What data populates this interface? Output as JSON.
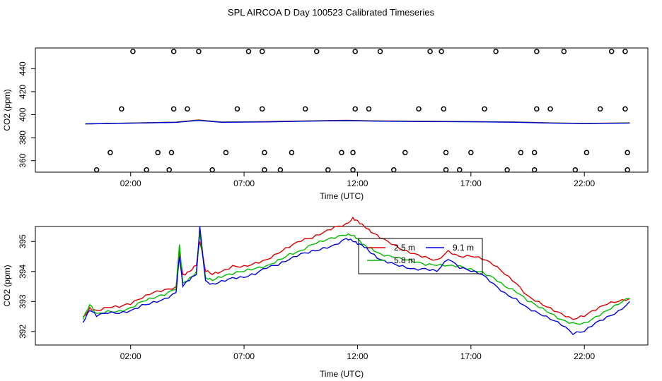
{
  "title": "SPL AIRCOA D  Day 100523  Calibrated Timeseries",
  "colors": {
    "red": "#dd0000",
    "green": "#00bb00",
    "blue": "#0000dd",
    "purple": "#aa00aa",
    "cyan": "#00aaaa",
    "black": "#000000"
  },
  "chart_data": [
    {
      "type": "scatter",
      "title": "",
      "xlabel": "Time (UTC)",
      "ylabel": "CO2 (ppm)",
      "x_ticks": [
        "02:00",
        "07:00",
        "12:00",
        "17:00",
        "22:00"
      ],
      "x_tick_hours": [
        2,
        7,
        12,
        17,
        22
      ],
      "y_ticks": [
        "360",
        "380",
        "400",
        "420",
        "440"
      ],
      "y_tick_values": [
        360,
        380,
        400,
        420,
        440
      ],
      "xlim": [
        -2.2,
        24.8
      ],
      "ylim": [
        350,
        458
      ],
      "grid": false,
      "marker": "open circle",
      "points": [
        [
          0.5,
          352
        ],
        [
          2.1,
          455
        ],
        [
          3.9,
          455
        ],
        [
          5.0,
          455
        ],
        [
          7.2,
          455
        ],
        [
          7.8,
          455
        ],
        [
          10.2,
          455
        ],
        [
          11.9,
          455
        ],
        [
          13.0,
          455
        ],
        [
          15.2,
          455
        ],
        [
          15.7,
          455
        ],
        [
          18.1,
          455
        ],
        [
          19.9,
          455
        ],
        [
          21.1,
          455
        ],
        [
          23.2,
          455
        ],
        [
          23.8,
          455
        ],
        [
          1.1,
          367
        ],
        [
          1.6,
          405
        ],
        [
          2.7,
          352
        ],
        [
          3.2,
          367
        ],
        [
          3.7,
          352
        ],
        [
          3.8,
          367
        ],
        [
          3.9,
          405
        ],
        [
          4.5,
          405
        ],
        [
          5.6,
          352
        ],
        [
          6.2,
          367
        ],
        [
          6.7,
          405
        ],
        [
          7.8,
          405
        ],
        [
          7.9,
          367
        ],
        [
          7.9,
          352
        ],
        [
          8.6,
          352
        ],
        [
          9.1,
          367
        ],
        [
          9.7,
          405
        ],
        [
          10.7,
          352
        ],
        [
          11.3,
          367
        ],
        [
          11.8,
          352
        ],
        [
          11.8,
          367
        ],
        [
          11.9,
          405
        ],
        [
          12.5,
          405
        ],
        [
          13.6,
          352
        ],
        [
          14.1,
          367
        ],
        [
          14.7,
          405
        ],
        [
          15.8,
          405
        ],
        [
          15.9,
          367
        ],
        [
          15.9,
          352
        ],
        [
          16.5,
          352
        ],
        [
          17.0,
          367
        ],
        [
          17.6,
          405
        ],
        [
          18.6,
          352
        ],
        [
          19.2,
          367
        ],
        [
          19.8,
          352
        ],
        [
          19.8,
          367
        ],
        [
          19.9,
          405
        ],
        [
          20.5,
          405
        ],
        [
          21.6,
          352
        ],
        [
          22.1,
          367
        ],
        [
          22.7,
          405
        ],
        [
          23.8,
          405
        ],
        [
          23.9,
          367
        ],
        [
          23.9,
          352
        ]
      ],
      "series": [
        {
          "name": "2.5 m",
          "color": "#dd0000",
          "x": [
            0,
            2,
            4,
            5,
            6,
            8,
            10,
            11.5,
            13,
            15,
            17,
            19,
            20.5,
            22,
            24
          ],
          "values": [
            392.0,
            392.8,
            393.5,
            395.5,
            393.6,
            394.0,
            394.7,
            395.1,
            394.6,
            394.3,
            394.0,
            393.6,
            392.9,
            392.4,
            392.9
          ]
        },
        {
          "name": "5.8 m",
          "color": "#00bb00",
          "x": [
            0,
            2,
            4,
            5,
            6,
            8,
            10,
            11.5,
            13,
            15,
            17,
            19,
            20.5,
            22,
            24
          ],
          "values": [
            392.0,
            392.7,
            393.4,
            395.2,
            393.5,
            393.8,
            394.5,
            394.9,
            394.4,
            394.1,
            393.9,
            393.5,
            392.8,
            392.3,
            392.8
          ]
        },
        {
          "name": "9.1 m",
          "color": "#0000dd",
          "x": [
            0,
            2,
            4,
            5,
            6,
            8,
            10,
            11.5,
            13,
            15,
            17,
            19,
            20.5,
            22,
            24
          ],
          "values": [
            392.0,
            392.6,
            393.3,
            395.0,
            393.4,
            393.7,
            394.4,
            394.8,
            394.3,
            394.0,
            393.8,
            393.4,
            392.7,
            392.2,
            392.7
          ]
        }
      ]
    },
    {
      "type": "line",
      "title": "",
      "xlabel": "Time (UTC)",
      "ylabel": "CO2 (ppm)",
      "x_ticks": [
        "02:00",
        "07:00",
        "12:00",
        "17:00",
        "22:00"
      ],
      "x_tick_hours": [
        2,
        7,
        12,
        17,
        22
      ],
      "y_ticks": [
        "392",
        "393",
        "394",
        "395"
      ],
      "y_tick_values": [
        392,
        393,
        394,
        395
      ],
      "xlim": [
        -2.2,
        24.8
      ],
      "ylim": [
        391.55,
        395.5
      ],
      "grid": false,
      "legend": {
        "placement": "top-center-right",
        "entries": [
          "2.5 m",
          "5.8 m",
          "9.1 m"
        ]
      },
      "series": [
        {
          "name": "2.5 m",
          "color": "#dd0000",
          "x": [
            -0.1,
            0.2,
            0.5,
            1.0,
            1.5,
            2.0,
            2.5,
            3.0,
            3.5,
            4.0,
            4.15,
            4.3,
            4.6,
            4.9,
            5.05,
            5.3,
            5.6,
            6.0,
            6.5,
            7.0,
            7.5,
            8.0,
            8.5,
            9.0,
            9.5,
            10.0,
            10.5,
            11.0,
            11.5,
            11.8,
            12.0,
            12.3,
            12.6,
            13.0,
            13.5,
            14.0,
            14.5,
            15.0,
            15.5,
            16.0,
            16.5,
            17.0,
            17.5,
            18.0,
            18.5,
            19.0,
            19.5,
            20.0,
            20.5,
            21.0,
            21.5,
            22.0,
            22.5,
            23.0,
            23.5,
            24.0
          ],
          "values": [
            392.5,
            392.8,
            392.7,
            392.8,
            392.8,
            392.9,
            393.1,
            393.3,
            393.4,
            393.5,
            394.7,
            393.9,
            394.0,
            394.2,
            395.0,
            394.0,
            393.9,
            394.0,
            394.2,
            394.2,
            394.3,
            394.4,
            394.6,
            394.8,
            395.0,
            395.1,
            395.3,
            395.5,
            395.6,
            395.8,
            395.7,
            395.5,
            395.3,
            395.1,
            394.9,
            394.7,
            394.6,
            394.5,
            394.4,
            394.7,
            394.5,
            394.5,
            394.4,
            394.2,
            393.9,
            393.6,
            393.2,
            393.0,
            392.8,
            392.6,
            392.4,
            392.5,
            392.7,
            392.9,
            393.0,
            393.1
          ]
        },
        {
          "name": "5.8 m",
          "color": "#00bb00",
          "x": [
            -0.1,
            0.2,
            0.5,
            1.0,
            1.5,
            2.0,
            2.5,
            3.0,
            3.5,
            4.0,
            4.15,
            4.3,
            4.6,
            4.9,
            5.05,
            5.3,
            5.6,
            6.0,
            6.5,
            7.0,
            7.5,
            8.0,
            8.5,
            9.0,
            9.5,
            10.0,
            10.5,
            11.0,
            11.5,
            11.8,
            12.0,
            12.3,
            12.6,
            13.0,
            13.5,
            14.0,
            14.5,
            15.0,
            15.5,
            16.0,
            16.5,
            17.0,
            17.5,
            18.0,
            18.5,
            19.0,
            19.5,
            20.0,
            20.5,
            21.0,
            21.5,
            22.0,
            22.5,
            23.0,
            23.5,
            24.0
          ],
          "values": [
            392.4,
            392.9,
            392.6,
            392.7,
            392.7,
            392.8,
            393.0,
            393.1,
            393.2,
            393.4,
            394.9,
            393.6,
            393.8,
            394.0,
            395.3,
            393.8,
            393.7,
            393.8,
            393.9,
            394.0,
            394.1,
            394.2,
            394.4,
            394.6,
            394.7,
            394.9,
            395.0,
            395.1,
            395.2,
            395.2,
            395.1,
            394.9,
            394.8,
            394.6,
            394.5,
            394.4,
            394.3,
            394.2,
            394.2,
            394.2,
            394.2,
            394.1,
            394.0,
            393.8,
            393.5,
            393.3,
            393.0,
            392.8,
            392.6,
            392.4,
            392.3,
            392.3,
            392.5,
            392.7,
            392.9,
            393.1
          ]
        },
        {
          "name": "9.1 m",
          "color": "#0000dd",
          "x": [
            -0.1,
            0.2,
            0.5,
            1.0,
            1.5,
            2.0,
            2.5,
            3.0,
            3.5,
            4.0,
            4.15,
            4.3,
            4.6,
            4.9,
            5.05,
            5.3,
            5.6,
            6.0,
            6.5,
            7.0,
            7.5,
            8.0,
            8.5,
            9.0,
            9.5,
            10.0,
            10.5,
            11.0,
            11.5,
            11.8,
            12.0,
            12.3,
            12.6,
            13.0,
            13.5,
            14.0,
            14.5,
            15.0,
            15.5,
            16.0,
            16.5,
            17.0,
            17.5,
            18.0,
            18.5,
            19.0,
            19.5,
            20.0,
            20.5,
            21.0,
            21.5,
            22.0,
            22.5,
            23.0,
            23.5,
            24.0
          ],
          "values": [
            392.3,
            392.7,
            392.5,
            392.6,
            392.6,
            392.7,
            392.9,
            393.0,
            393.1,
            393.3,
            394.5,
            393.5,
            393.7,
            393.9,
            395.5,
            393.7,
            393.6,
            393.7,
            393.8,
            393.8,
            393.9,
            394.1,
            394.2,
            394.4,
            394.6,
            394.7,
            394.8,
            394.9,
            395.1,
            395.0,
            394.9,
            394.8,
            394.6,
            394.4,
            394.3,
            394.2,
            394.1,
            394.1,
            394.0,
            394.4,
            394.1,
            394.0,
            393.9,
            393.6,
            393.3,
            393.1,
            392.8,
            392.6,
            392.4,
            392.2,
            391.9,
            392.0,
            392.3,
            392.5,
            392.7,
            393.0
          ]
        }
      ]
    }
  ]
}
